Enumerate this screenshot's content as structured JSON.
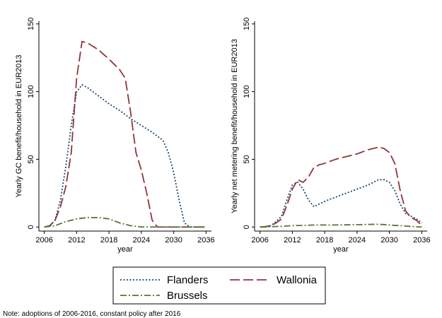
{
  "chart_data": [
    {
      "type": "line",
      "xlabel": "year",
      "ylabel": "Yearly GC benefit/household in EUR2013",
      "x": [
        2006,
        2007,
        2008,
        2009,
        2010,
        2011,
        2012,
        2013,
        2014,
        2015,
        2016,
        2017,
        2018,
        2019,
        2020,
        2021,
        2022,
        2023,
        2024,
        2025,
        2026,
        2027,
        2028,
        2029,
        2030,
        2031,
        2032,
        2033,
        2034,
        2035,
        2036
      ],
      "xlim": [
        2005,
        2037
      ],
      "xticks": [
        2006,
        2012,
        2018,
        2024,
        2030,
        2036
      ],
      "ylim": [
        -3,
        152
      ],
      "yticks": [
        0,
        50,
        100,
        150
      ],
      "grid": false,
      "legend": "bottom",
      "series": [
        {
          "name": "Flanders",
          "color": "#1a476f",
          "dash": "dot",
          "values": [
            0,
            0.5,
            5,
            20,
            45,
            75,
            100,
            105,
            103,
            100,
            97,
            94,
            91,
            88.5,
            86,
            83,
            80,
            77.5,
            75,
            72.5,
            70,
            67,
            64,
            55,
            40,
            20,
            3,
            0,
            0,
            0,
            0
          ]
        },
        {
          "name": "Wallonia",
          "color": "#90353b",
          "dash": "longdash",
          "values": [
            0,
            1,
            5,
            15,
            30,
            55,
            110,
            137,
            136,
            133.5,
            131,
            127.5,
            124,
            120,
            116,
            110,
            85,
            55,
            42,
            25,
            5,
            0,
            0,
            0,
            0,
            0,
            0,
            0,
            0,
            0,
            0
          ]
        },
        {
          "name": "Brussels",
          "color": "#55752f",
          "dash": "dashdot",
          "values": [
            0,
            0.5,
            1,
            2.5,
            4,
            5,
            6,
            6.5,
            7,
            7,
            7,
            6.5,
            6,
            4.5,
            3,
            2,
            1,
            0.5,
            0,
            0,
            0,
            0,
            0,
            0,
            0,
            0,
            0,
            0,
            0,
            0,
            0
          ]
        }
      ]
    },
    {
      "type": "line",
      "xlabel": "year",
      "ylabel": "Yearly net metering benefit/household in EUR2013",
      "x": [
        2006,
        2007,
        2008,
        2009,
        2010,
        2011,
        2012,
        2013,
        2014,
        2015,
        2016,
        2017,
        2018,
        2019,
        2020,
        2021,
        2022,
        2023,
        2024,
        2025,
        2026,
        2027,
        2028,
        2029,
        2030,
        2031,
        2032,
        2033,
        2034,
        2035,
        2036
      ],
      "xlim": [
        2005,
        2037
      ],
      "xticks": [
        2006,
        2012,
        2018,
        2024,
        2030,
        2036
      ],
      "ylim": [
        -3,
        152
      ],
      "yticks": [
        0,
        50,
        100,
        150
      ],
      "grid": false,
      "series": [
        {
          "name": "Flanders",
          "color": "#1a476f",
          "dash": "dot",
          "values": [
            0,
            0.3,
            1,
            4,
            8,
            20,
            31,
            33,
            28,
            20,
            15,
            17,
            19,
            20.5,
            22,
            23.5,
            25,
            26.5,
            28,
            29.5,
            31,
            33,
            35,
            35,
            33,
            27,
            17,
            10,
            8,
            6,
            3
          ]
        },
        {
          "name": "Wallonia",
          "color": "#90353b",
          "dash": "longdash",
          "values": [
            0,
            0.3,
            1,
            3,
            6,
            16,
            28,
            35,
            33,
            37,
            44,
            46,
            47,
            48.5,
            50,
            51,
            52,
            53,
            54,
            55.5,
            57,
            58,
            59,
            58,
            55,
            47,
            27,
            12,
            7,
            5,
            1
          ]
        },
        {
          "name": "Brussels",
          "color": "#55752f",
          "dash": "dashdot",
          "values": [
            0,
            0,
            0.2,
            0.4,
            0.5,
            0.8,
            1,
            1.1,
            1.2,
            1.3,
            1.5,
            1.5,
            1.5,
            1.5,
            1.5,
            1.6,
            1.6,
            1.7,
            1.7,
            1.8,
            1.9,
            2,
            2,
            1.8,
            1.5,
            1.2,
            1,
            0.7,
            0.4,
            0.2,
            0
          ]
        }
      ]
    }
  ],
  "note": "Note: adoptions of 2006-2016, constant policy after 2016"
}
